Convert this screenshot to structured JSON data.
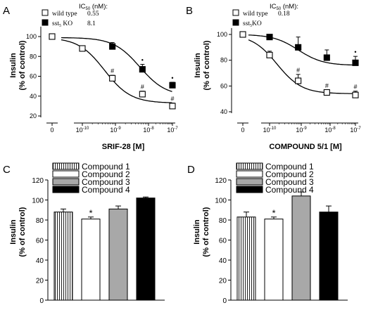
{
  "chart_data": [
    {
      "panel": "A",
      "type": "scatter",
      "ylabel_line1": "Insulin",
      "ylabel_line2": "(% of control)",
      "xlabel": "SRIF-28 [M]",
      "x_scale": "log",
      "x_ticks": [
        {
          "value": "0",
          "base": "0",
          "exp": ""
        },
        {
          "value": 1e-10,
          "base": "10",
          "exp": "-10"
        },
        {
          "value": 1e-09,
          "base": "10",
          "exp": "-9"
        },
        {
          "value": 1e-08,
          "base": "10",
          "exp": "-8"
        },
        {
          "value": 1e-07,
          "base": "10",
          "exp": "-7"
        }
      ],
      "y_ticks": [
        20,
        40,
        60,
        80,
        100
      ],
      "ylim": [
        20,
        110
      ],
      "legend_title": "IC",
      "legend_title_sub": "50",
      "legend_title_rest": " (nM):",
      "legend": [
        {
          "label": "wild type",
          "ic50": "0.55",
          "marker": "open-square"
        },
        {
          "label": "sst",
          "label_sub": "5",
          "label_rest": " KO",
          "ic50": "8.1",
          "marker": "filled-square"
        }
      ],
      "series": [
        {
          "name": "wild type",
          "marker": "open-square",
          "x": [
            "0",
            1e-10,
            1e-09,
            1e-08,
            1e-07
          ],
          "y": [
            100,
            88,
            58,
            42,
            30
          ],
          "err": [
            0,
            2,
            3,
            3,
            3
          ],
          "sig": [
            "",
            "",
            "#",
            "#",
            "#"
          ]
        },
        {
          "name": "sst5 KO",
          "marker": "filled-square",
          "x": [
            1e-09,
            1e-08,
            1e-07
          ],
          "y": [
            90,
            67,
            51
          ],
          "err": [
            4,
            5,
            3
          ],
          "sig": [
            "",
            "•",
            "•"
          ]
        }
      ],
      "fit_curves": [
        {
          "for": "wild type",
          "top": 99,
          "bottom": 33,
          "log_ic50": -9.26
        },
        {
          "for": "sst5 KO",
          "top": 99,
          "bottom": 40,
          "log_ic50": -8.09
        }
      ]
    },
    {
      "panel": "B",
      "type": "scatter",
      "ylabel_line1": "Insulin",
      "ylabel_line2": "(% of control)",
      "xlabel": "COMPOUND 5/1 [M]",
      "x_scale": "log",
      "x_ticks": [
        {
          "value": "0",
          "base": "0",
          "exp": ""
        },
        {
          "value": 1e-10,
          "base": "10",
          "exp": "-10"
        },
        {
          "value": 1e-09,
          "base": "10",
          "exp": "-9"
        },
        {
          "value": 1e-08,
          "base": "10",
          "exp": "-8"
        },
        {
          "value": 1e-07,
          "base": "10",
          "exp": "-7"
        }
      ],
      "y_ticks": [
        40,
        60,
        80,
        100
      ],
      "ylim": [
        40,
        105
      ],
      "legend_title": "IC",
      "legend_title_sub": "50",
      "legend_title_rest": " (nM):",
      "legend": [
        {
          "label": "wild type",
          "ic50": "0.18",
          "marker": "open-square"
        },
        {
          "label": "sst",
          "label_sub": "5",
          "label_rest": "KO",
          "ic50": "",
          "marker": "filled-square"
        }
      ],
      "series": [
        {
          "name": "wild type",
          "marker": "open-square",
          "x": [
            "0",
            1e-10,
            1e-09,
            1e-08,
            1e-07
          ],
          "y": [
            100,
            84,
            64,
            55,
            53
          ],
          "err": [
            0,
            3,
            5,
            2,
            3
          ],
          "sig": [
            "",
            "",
            "#",
            "#",
            "#"
          ]
        },
        {
          "name": "sst5 KO",
          "marker": "filled-square",
          "x": [
            1e-10,
            1e-09,
            1e-08,
            1e-07
          ],
          "y": [
            98,
            90,
            82,
            78
          ],
          "err": [
            1,
            8,
            6,
            5
          ],
          "sig": [
            "",
            "",
            "",
            "•"
          ]
        }
      ],
      "fit_curves": [
        {
          "for": "wild type",
          "top": 100,
          "bottom": 54,
          "log_ic50": -9.74
        },
        {
          "for": "sst5 KO",
          "top": 100,
          "bottom": 76,
          "log_ic50": -9.0
        }
      ]
    },
    {
      "panel": "C",
      "type": "bar",
      "ylabel_line1": "Insulin",
      "ylabel_line2": "(% of control)",
      "y_ticks": [
        0,
        20,
        40,
        60,
        80,
        100,
        120
      ],
      "ylim": [
        0,
        120
      ],
      "categories": [
        "Compound 1",
        "Compound 2",
        "Compound 3",
        "Compound 4"
      ],
      "values": [
        88,
        81,
        91,
        102
      ],
      "errors": [
        3,
        2,
        3,
        1
      ],
      "sig": [
        "",
        "*",
        "",
        ""
      ],
      "fills": [
        "vertical-stripes",
        "white",
        "#a8a8a8",
        "#000000"
      ]
    },
    {
      "panel": "D",
      "type": "bar",
      "ylabel_line1": "Insulin",
      "ylabel_line2": "(% of control)",
      "y_ticks": [
        0,
        20,
        40,
        60,
        80,
        100,
        120
      ],
      "ylim": [
        0,
        120
      ],
      "categories": [
        "Compound 1",
        "Compound 2",
        "Compound 3",
        "Compound 4"
      ],
      "values": [
        83,
        81,
        104,
        88
      ],
      "errors": [
        5,
        2,
        4,
        6
      ],
      "sig": [
        "",
        "*",
        "",
        ""
      ],
      "fills": [
        "vertical-stripes",
        "white",
        "#a8a8a8",
        "#000000"
      ]
    }
  ]
}
